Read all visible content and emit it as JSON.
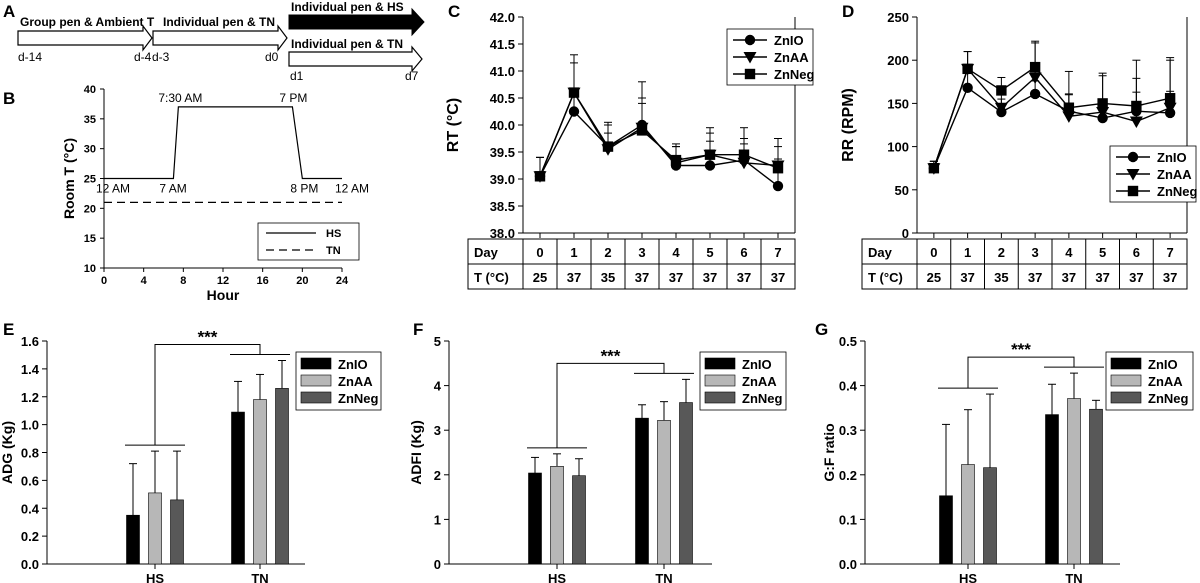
{
  "panel_labels": {
    "A": "A",
    "B": "B",
    "C": "C",
    "D": "D",
    "E": "E",
    "F": "F",
    "G": "G"
  },
  "timeline": {
    "stage1_label": "Group pen & Ambient T",
    "stage2_label": "Individual pen & TN",
    "stage3_hs_label": "Individual pen & HS",
    "stage3_tn_label": "Individual pen & TN",
    "days": {
      "d_14": "d-14",
      "d_4": "d-4",
      "d_3": "d-3",
      "d0": "d0",
      "d1": "d1",
      "d7": "d7"
    }
  },
  "chart_data": [
    {
      "id": "B",
      "type": "line",
      "xlabel": "Hour",
      "ylabel": "Room T (°C)",
      "xlim": [
        0,
        24
      ],
      "ylim": [
        10,
        40
      ],
      "xticks": [
        "0",
        "4",
        "8",
        "12",
        "16",
        "20",
        "24"
      ],
      "yticks": [
        "10",
        "15",
        "20",
        "25",
        "30",
        "35",
        "40"
      ],
      "series": [
        {
          "name": "HS",
          "style": "solid",
          "x": [
            0,
            7,
            7.5,
            19,
            20,
            24
          ],
          "y": [
            25,
            25,
            37,
            37,
            25,
            25
          ]
        },
        {
          "name": "TN",
          "style": "dashed",
          "x": [
            0,
            24
          ],
          "y": [
            21,
            21
          ]
        }
      ],
      "annotations": {
        "a12am_start": "12 AM",
        "a7am": "7 AM",
        "a730am": "7:30 AM",
        "a7pm": "7 PM",
        "a8pm": "8 PM",
        "a12am_end": "12 AM"
      }
    },
    {
      "id": "C",
      "type": "line",
      "ylabel": "RT (°C)",
      "ylim": [
        38.0,
        42.0
      ],
      "yticks": [
        "38.0",
        "38.5",
        "39.0",
        "39.5",
        "40.0",
        "40.5",
        "41.0",
        "41.5",
        "42.0"
      ],
      "x": [
        0,
        1,
        2,
        3,
        4,
        5,
        6,
        7
      ],
      "series": [
        {
          "name": "ZnIO",
          "marker": "circle",
          "values": [
            39.05,
            40.25,
            39.6,
            40.0,
            39.25,
            39.25,
            39.35,
            38.87
          ],
          "errors": [
            0.35,
            0.3,
            0.4,
            0.8,
            0.35,
            0.45,
            0.4,
            0.5
          ]
        },
        {
          "name": "ZnAA",
          "marker": "triangle",
          "values": [
            39.05,
            40.6,
            39.55,
            39.95,
            39.3,
            39.45,
            39.3,
            39.25
          ],
          "errors": [
            0.35,
            0.55,
            0.3,
            0.55,
            0.3,
            0.4,
            0.35,
            0.35
          ]
        },
        {
          "name": "ZnNeg",
          "marker": "square",
          "values": [
            39.05,
            40.6,
            39.6,
            39.9,
            39.35,
            39.45,
            39.45,
            39.2
          ],
          "errors": [
            0.35,
            0.7,
            0.45,
            0.5,
            0.3,
            0.5,
            0.5,
            0.55
          ]
        }
      ],
      "table": {
        "row1_label": "Day",
        "row2_label": "T (°C)",
        "days": [
          "0",
          "1",
          "2",
          "3",
          "4",
          "5",
          "6",
          "7"
        ],
        "temps": [
          "25",
          "37",
          "35",
          "37",
          "37",
          "37",
          "37",
          "37"
        ]
      }
    },
    {
      "id": "D",
      "type": "line",
      "ylabel": "RR (RPM)",
      "ylim": [
        0,
        250
      ],
      "yticks": [
        "0",
        "50",
        "100",
        "150",
        "200",
        "250"
      ],
      "x": [
        0,
        1,
        2,
        3,
        4,
        5,
        6,
        7
      ],
      "series": [
        {
          "name": "ZnIO",
          "marker": "circle",
          "values": [
            75,
            168,
            140,
            161,
            141,
            133,
            141,
            139
          ],
          "errors": [
            8,
            20,
            15,
            15,
            20,
            22,
            22,
            25
          ]
        },
        {
          "name": "ZnAA",
          "marker": "triangle",
          "values": [
            75,
            190,
            145,
            180,
            135,
            140,
            129,
            145
          ],
          "errors": [
            8,
            20,
            20,
            40,
            25,
            45,
            50,
            55
          ]
        },
        {
          "name": "ZnNeg",
          "marker": "square",
          "values": [
            75,
            190,
            165,
            192,
            145,
            150,
            147,
            156
          ],
          "errors": [
            8,
            20,
            15,
            30,
            42,
            32,
            53,
            47
          ]
        }
      ],
      "table": {
        "row1_label": "Day",
        "row2_label": "T (°C)",
        "days": [
          "0",
          "1",
          "2",
          "3",
          "4",
          "5",
          "6",
          "7"
        ],
        "temps": [
          "25",
          "37",
          "35",
          "37",
          "37",
          "37",
          "37",
          "37"
        ]
      }
    },
    {
      "id": "E",
      "type": "bar",
      "ylabel": "ADG (Kg)",
      "ylim": [
        0.0,
        1.6
      ],
      "yticks": [
        "0.0",
        "0.2",
        "0.4",
        "0.6",
        "0.8",
        "1.0",
        "1.2",
        "1.4",
        "1.6"
      ],
      "categories": [
        "HS",
        "TN"
      ],
      "series": [
        {
          "name": "ZnIO",
          "color": "#000000",
          "values": [
            0.35,
            1.09
          ],
          "errors": [
            0.37,
            0.22
          ]
        },
        {
          "name": "ZnAA",
          "color": "#b7b7b7",
          "values": [
            0.51,
            1.18
          ],
          "errors": [
            0.3,
            0.18
          ]
        },
        {
          "name": "ZnNeg",
          "color": "#585858",
          "values": [
            0.46,
            1.26
          ],
          "errors": [
            0.35,
            0.2
          ]
        }
      ],
      "significance": "***"
    },
    {
      "id": "F",
      "type": "bar",
      "ylabel": "ADFI (Kg)",
      "ylim": [
        0,
        5
      ],
      "yticks": [
        "0",
        "1",
        "2",
        "3",
        "4",
        "5"
      ],
      "categories": [
        "HS",
        "TN"
      ],
      "series": [
        {
          "name": "ZnIO",
          "color": "#000000",
          "values": [
            2.04,
            3.27
          ],
          "errors": [
            0.35,
            0.3
          ]
        },
        {
          "name": "ZnAA",
          "color": "#b7b7b7",
          "values": [
            2.19,
            3.22
          ],
          "errors": [
            0.28,
            0.42
          ]
        },
        {
          "name": "ZnNeg",
          "color": "#585858",
          "values": [
            1.98,
            3.62
          ],
          "errors": [
            0.38,
            0.52
          ]
        }
      ],
      "significance": "***"
    },
    {
      "id": "G",
      "type": "bar",
      "ylabel": "G:F ratio",
      "ylim": [
        0.0,
        0.5
      ],
      "yticks": [
        "0.0",
        "0.1",
        "0.2",
        "0.3",
        "0.4",
        "0.5"
      ],
      "categories": [
        "HS",
        "TN"
      ],
      "series": [
        {
          "name": "ZnIO",
          "color": "#000000",
          "values": [
            0.153,
            0.335
          ],
          "errors": [
            0.16,
            0.068
          ]
        },
        {
          "name": "ZnAA",
          "color": "#b7b7b7",
          "values": [
            0.223,
            0.371
          ],
          "errors": [
            0.123,
            0.057
          ]
        },
        {
          "name": "ZnNeg",
          "color": "#585858",
          "values": [
            0.216,
            0.347
          ],
          "errors": [
            0.165,
            0.02
          ]
        }
      ],
      "significance": "***"
    }
  ]
}
